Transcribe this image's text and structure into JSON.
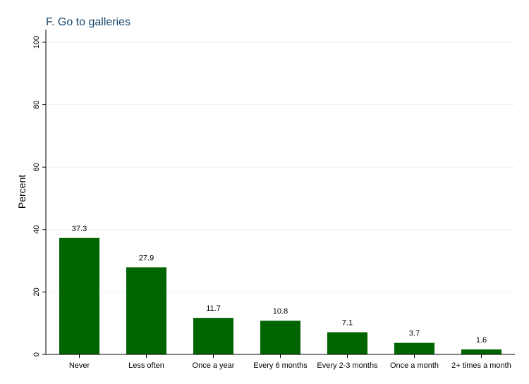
{
  "chart_data": {
    "type": "bar",
    "title": "F. Go to galleries",
    "xlabel": "",
    "ylabel": "Percent",
    "categories": [
      "Never",
      "Less often",
      "Once a year",
      "Every 6 months",
      "Every 2-3 months",
      "Once a month",
      "2+ times a month"
    ],
    "values": [
      37.3,
      27.9,
      11.7,
      10.8,
      7.1,
      3.7,
      1.6
    ],
    "data_labels": [
      "37.3",
      "27.9",
      "11.7",
      "10.8",
      "7.1",
      "3.7",
      "1.6"
    ],
    "ylim": [
      0,
      100
    ],
    "yticks": [
      0,
      20,
      40,
      60,
      80,
      100
    ],
    "ytick_labels": [
      "0",
      "20",
      "40",
      "60",
      "80",
      "100"
    ],
    "grid": true,
    "legend": "none",
    "bar_color": "#006400",
    "gridline_color": "#eaf2f3",
    "title_color": "#1a476f"
  }
}
